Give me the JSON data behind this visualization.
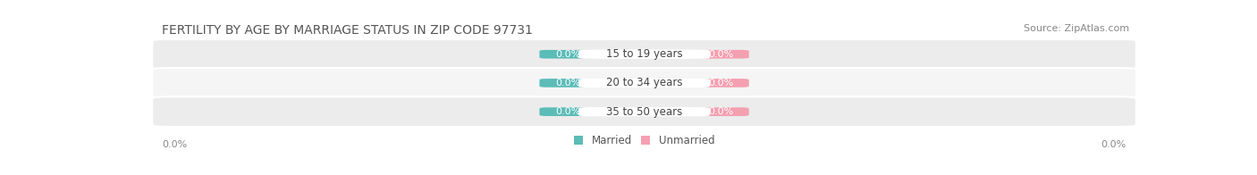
{
  "title": "FERTILITY BY AGE BY MARRIAGE STATUS IN ZIP CODE 97731",
  "source": "Source: ZipAtlas.com",
  "categories": [
    "15 to 19 years",
    "20 to 34 years",
    "35 to 50 years"
  ],
  "married_values": [
    0.0,
    0.0,
    0.0
  ],
  "unmarried_values": [
    0.0,
    0.0,
    0.0
  ],
  "married_color": "#5bbcb8",
  "unmarried_color": "#f4a0b0",
  "row_bg_colors": [
    "#ececec",
    "#f5f5f5",
    "#ececec"
  ],
  "title_fontsize": 10,
  "source_fontsize": 8,
  "label_fontsize": 8.5,
  "value_fontsize": 8,
  "ylim_left_label": "0.0%",
  "ylim_right_label": "0.0%",
  "legend_married": "Married",
  "legend_unmarried": "Unmarried",
  "background_color": "#ffffff"
}
